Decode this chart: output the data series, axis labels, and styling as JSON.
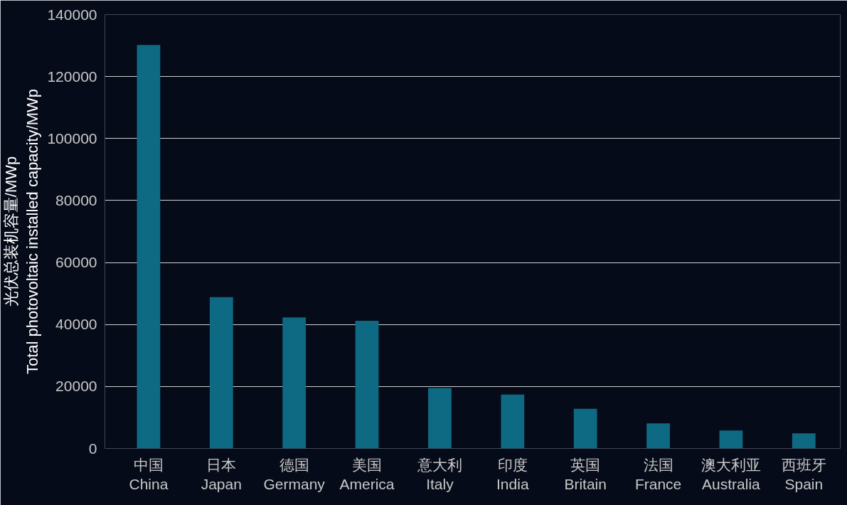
{
  "chart_data": {
    "type": "bar",
    "ylabel": "光伏总装机容量/MWp\nTotal photovoltaic installed capacity/MWp",
    "categories": [
      "中国\nChina",
      "日本\nJapan",
      "德国\nGermany",
      "美国\nAmerica",
      "意大利\nItaly",
      "印度\nIndia",
      "英国\nBritain",
      "法国\nFrance",
      "澳大利亚\nAustralia",
      "西班牙\nSpain"
    ],
    "values": [
      130200,
      48800,
      42300,
      41200,
      19500,
      17400,
      12800,
      8100,
      5800,
      4900
    ],
    "color": "#0e6a82",
    "ylim": [
      0,
      140000
    ],
    "yticks": [
      0,
      20000,
      40000,
      60000,
      80000,
      100000,
      120000,
      140000
    ],
    "grid": "y"
  }
}
